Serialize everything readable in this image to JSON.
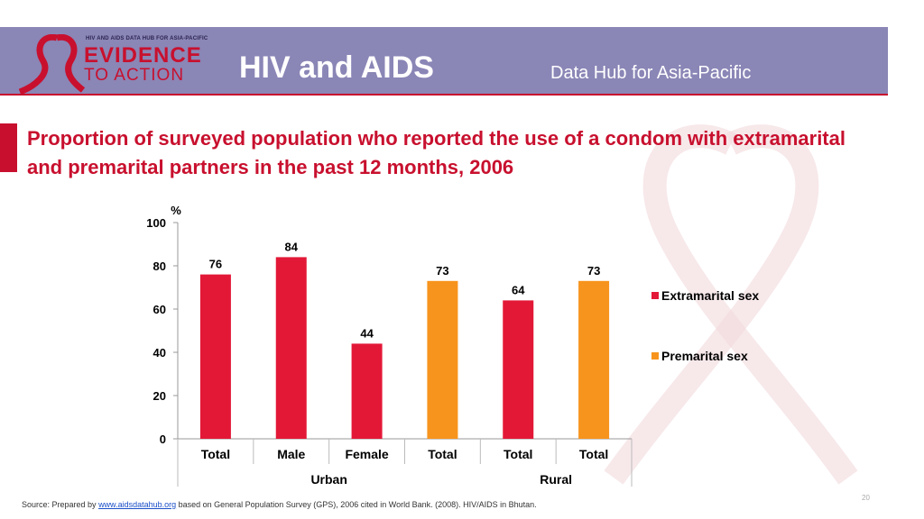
{
  "header": {
    "logo_small": "HIV AND AIDS DATA HUB FOR ASIA-PACIFIC",
    "logo_evidence": "EVIDENCE",
    "logo_to_action": "TO ACTION",
    "title": "HIV and AIDS",
    "subtitle": "Data Hub for Asia-Pacific"
  },
  "slide_title": "Proportion of surveyed population who reported the use of a condom with extramarital and premarital partners in the past 12 months, 2006",
  "chart_data": {
    "type": "bar",
    "ylabel": "%",
    "ylim": [
      0,
      100
    ],
    "yticks": [
      0,
      20,
      40,
      60,
      80,
      100
    ],
    "categories": [
      "Total",
      "Male",
      "Female",
      "Total",
      "Total",
      "Total"
    ],
    "groups": [
      {
        "label": "Urban",
        "span": [
          0,
          3
        ]
      },
      {
        "label": "Rural",
        "span": [
          4,
          5
        ]
      }
    ],
    "values": [
      76,
      84,
      44,
      73,
      64,
      73
    ],
    "bar_series": [
      "Extramarital sex",
      "Extramarital sex",
      "Extramarital sex",
      "Premarital sex",
      "Extramarital sex",
      "Premarital sex"
    ],
    "series": [
      {
        "name": "Extramarital sex",
        "color": "#e31837"
      },
      {
        "name": "Premarital sex",
        "color": "#f7941d"
      }
    ],
    "legend_position": "right",
    "grid": false
  },
  "footer": {
    "source_prefix": "Source: Prepared by ",
    "source_link": "www.aidsdatahub.org",
    "source_suffix": "  based on General Population Survey (GPS), 2006 cited in World Bank. (2008). HIV/AIDS in Bhutan.",
    "page_number": "20"
  }
}
